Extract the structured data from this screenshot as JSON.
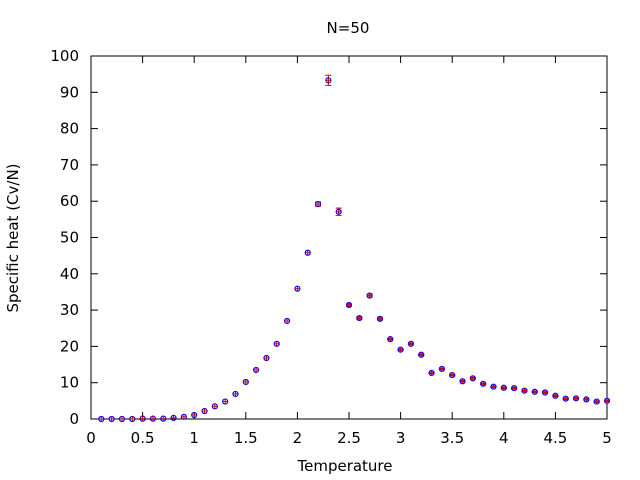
{
  "chart_data": {
    "type": "scatter",
    "title": "N=50",
    "xlabel": "Temperature",
    "ylabel": "Specific heat (Cv/N)",
    "xlim": [
      0,
      5
    ],
    "ylim": [
      0,
      100
    ],
    "xticks": [
      0,
      0.5,
      1,
      1.5,
      2,
      2.5,
      3,
      3.5,
      4,
      4.5,
      5
    ],
    "yticks": [
      0,
      10,
      20,
      30,
      40,
      50,
      60,
      70,
      80,
      90,
      100
    ],
    "xtick_labels": [
      "0",
      "0.5",
      "1",
      "1.5",
      "2",
      "2.5",
      "3",
      "3.5",
      "4",
      "4.5",
      "5"
    ],
    "ytick_labels": [
      "0",
      "10",
      "20",
      "30",
      "40",
      "50",
      "60",
      "70",
      "80",
      "90",
      "100"
    ],
    "grid": false,
    "error_bars": true,
    "series": [
      {
        "errorbar_color": "#cc0000",
        "marker_color": "#0000ff",
        "x": [
          0.1,
          0.2,
          0.3,
          0.4,
          0.5,
          0.6,
          0.7,
          0.8,
          0.9,
          1.0,
          1.1,
          1.2,
          1.3,
          1.4,
          1.5,
          1.6,
          1.7,
          1.8,
          1.9,
          2.0,
          2.1,
          2.2,
          2.3,
          2.4,
          2.5,
          2.6,
          2.7,
          2.8,
          2.9,
          3.0,
          3.1,
          3.2,
          3.3,
          3.4,
          3.5,
          3.6,
          3.7,
          3.8,
          3.9,
          4.0,
          4.1,
          4.2,
          4.3,
          4.4,
          4.5,
          4.6,
          4.7,
          4.8,
          4.9,
          5.0
        ],
        "y": [
          0,
          0,
          0,
          0,
          0.1,
          0.1,
          0.1,
          0.3,
          0.6,
          1.1,
          2.2,
          3.5,
          4.8,
          6.9,
          10.2,
          13.5,
          16.8,
          20.7,
          27.0,
          35.9,
          45.8,
          59.2,
          93.3,
          57.1,
          31.4,
          27.8,
          34.0,
          27.6,
          22.0,
          19.1,
          20.7,
          17.7,
          12.7,
          13.8,
          12.1,
          10.4,
          11.2,
          9.7,
          8.9,
          8.6,
          8.5,
          7.8,
          7.5,
          7.3,
          6.4,
          5.6,
          5.7,
          5.4,
          4.8,
          5.0
        ],
        "yerr": [
          0,
          0,
          0,
          0,
          0,
          0,
          0,
          0,
          0,
          0,
          0,
          0,
          0,
          0,
          0,
          0,
          0,
          0,
          0,
          0,
          0,
          0.6,
          1.4,
          1.0,
          0.3,
          0.3,
          0.4,
          0.3,
          0.2,
          0.2,
          0.2,
          0.2,
          0.2,
          0.2,
          0.2,
          0.2,
          0.2,
          0.2,
          0.2,
          0.2,
          0.2,
          0.2,
          0.2,
          0.2,
          0.2,
          0.2,
          0.2,
          0.2,
          0.2,
          0.2
        ]
      }
    ]
  }
}
